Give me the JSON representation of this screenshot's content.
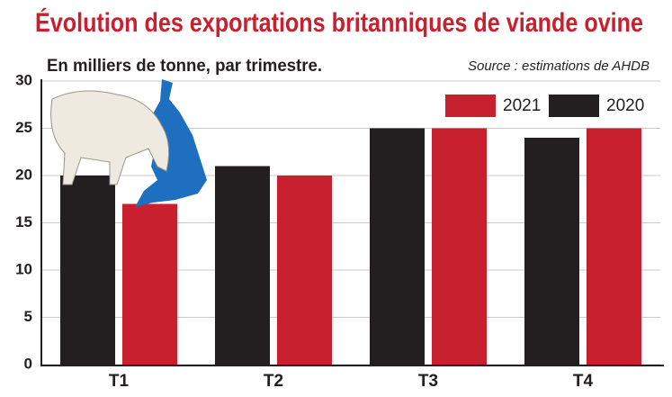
{
  "chart_data": {
    "type": "bar",
    "title": "Évolution des exportations britanniques de viande ovine",
    "subtitle": "En milliers de tonne, par trimestre.",
    "source": "Source : estimations de AHDB",
    "categories": [
      "T1",
      "T2",
      "T3",
      "T4"
    ],
    "series": [
      {
        "name": "2020",
        "color": "#231f20",
        "values": [
          20,
          21,
          25,
          24
        ]
      },
      {
        "name": "2021",
        "color": "#c8202f",
        "values": [
          17,
          20,
          25,
          25
        ]
      }
    ],
    "ylim": [
      0,
      30
    ],
    "yticks": [
      0,
      5,
      10,
      15,
      20,
      25,
      30
    ],
    "grid": true
  }
}
